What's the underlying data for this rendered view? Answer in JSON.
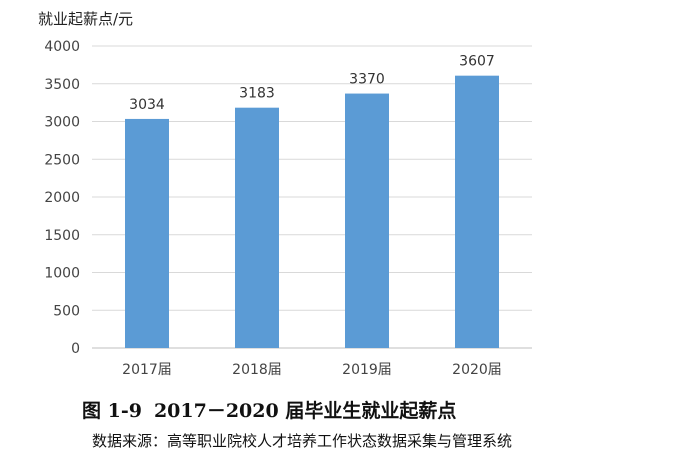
{
  "chart_data": {
    "type": "bar",
    "ylabel": "就业起薪点/元",
    "categories": [
      "2017届",
      "2018届",
      "2019届",
      "2020届"
    ],
    "values": [
      3034,
      3183,
      3370,
      3607
    ],
    "data_labels": [
      "3034",
      "3183",
      "3370",
      "3607"
    ],
    "yticks": [
      0,
      500,
      1000,
      1500,
      2000,
      2500,
      3000,
      3500,
      4000
    ],
    "ylim": [
      0,
      4000
    ],
    "grid": true,
    "bar_color": "#5b9bd5"
  },
  "caption": {
    "number": "图 1-9",
    "title": "2017－2020 届毕业生就业起薪点"
  },
  "source": "数据来源：高等职业院校人才培养工作状态数据采集与管理系统"
}
